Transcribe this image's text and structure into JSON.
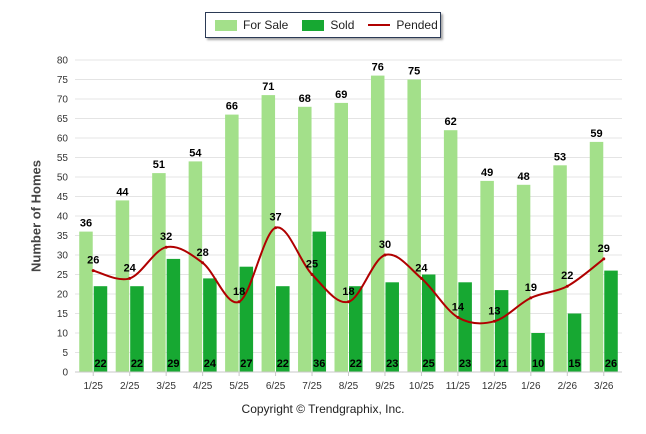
{
  "chart_data": {
    "type": "bar",
    "title": "",
    "xlabel": "",
    "ylabel": "Number of Homes",
    "ylim": [
      0,
      80
    ],
    "yticks": [
      0,
      5,
      10,
      15,
      20,
      25,
      30,
      35,
      40,
      45,
      50,
      55,
      60,
      65,
      70,
      75,
      80
    ],
    "categories": [
      "1/25",
      "2/25",
      "3/25",
      "4/25",
      "5/25",
      "6/25",
      "7/25",
      "8/25",
      "9/25",
      "10/25",
      "11/25",
      "12/25",
      "1/26",
      "2/26",
      "3/26"
    ],
    "series": [
      {
        "name": "For Sale",
        "kind": "bar",
        "color": "#a3e08a",
        "values": [
          36,
          44,
          51,
          54,
          66,
          71,
          68,
          69,
          76,
          75,
          62,
          49,
          48,
          53,
          59
        ]
      },
      {
        "name": "Sold",
        "kind": "bar",
        "color": "#17a832",
        "values": [
          22,
          22,
          29,
          24,
          27,
          22,
          36,
          22,
          23,
          25,
          23,
          21,
          10,
          15,
          26
        ]
      },
      {
        "name": "Pended",
        "kind": "line",
        "color": "#b00000",
        "values": [
          26,
          24,
          32,
          28,
          18,
          37,
          25,
          18,
          30,
          24,
          14,
          13,
          19,
          22,
          29
        ]
      }
    ],
    "legend_position": "top-center"
  },
  "legend": {
    "for_sale": "For Sale",
    "sold": "Sold",
    "pended": "Pended"
  },
  "footer": {
    "copyright": "Copyright © Trendgraphix, Inc."
  }
}
